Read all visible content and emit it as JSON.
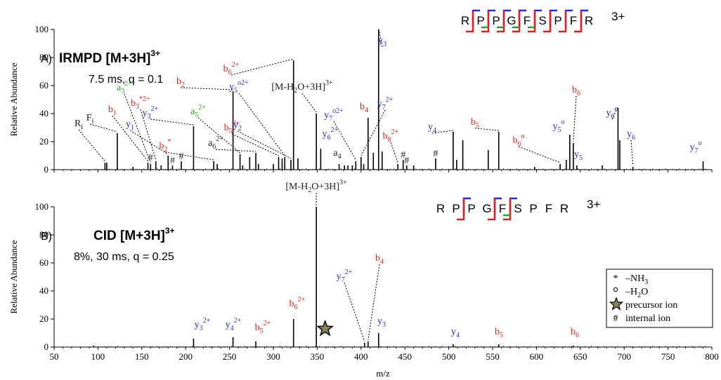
{
  "chart_data": {
    "type": "bar",
    "x_range": [
      50,
      800
    ],
    "x_ticks": [
      50,
      100,
      150,
      200,
      250,
      300,
      350,
      400,
      450,
      500,
      550,
      600,
      650,
      700,
      750,
      800
    ],
    "xlabel": "m/z",
    "colors": {
      "b": "#e02020",
      "y": "#2c2cc8",
      "a": "#2aa02a",
      "other": "#222222"
    },
    "panels": [
      {
        "id": "A",
        "panel_label": "A)",
        "title_main": "IRMPD [M+3H]",
        "title_sup": "3+",
        "subtitle": "7.5 ms, q = 0.1",
        "ylabel": "Relative Abundance",
        "ylim": [
          0,
          100
        ],
        "y_ticks": [
          0,
          20,
          40,
          60,
          80,
          100
        ],
        "sequence": [
          "R",
          "P",
          "P",
          "G",
          "F",
          "S",
          "P",
          "F",
          "R"
        ],
        "sequence_charge": "3+",
        "b_cleavages": [
          1,
          2,
          3,
          4,
          5,
          6,
          7,
          8
        ],
        "y_cleavages": [
          1,
          2,
          3,
          4,
          5,
          6,
          7,
          8
        ],
        "green_cleavages": [
          2,
          3,
          4,
          5
        ],
        "peaks": [
          [
            108,
            5
          ],
          [
            110,
            5
          ],
          [
            122,
            26
          ],
          [
            140,
            2
          ],
          [
            157,
            5
          ],
          [
            160,
            4
          ],
          [
            166,
            6
          ],
          [
            172,
            3
          ],
          [
            180,
            10
          ],
          [
            185,
            3
          ],
          [
            195,
            6
          ],
          [
            209,
            31
          ],
          [
            232,
            6
          ],
          [
            236,
            4
          ],
          [
            254,
            56
          ],
          [
            262,
            11
          ],
          [
            265,
            3
          ],
          [
            273,
            9
          ],
          [
            280,
            12
          ],
          [
            283,
            4
          ],
          [
            300,
            4
          ],
          [
            306,
            9
          ],
          [
            310,
            8
          ],
          [
            313,
            9
          ],
          [
            320,
            7
          ],
          [
            323,
            78
          ],
          [
            328,
            8
          ],
          [
            349,
            40
          ],
          [
            354,
            15
          ],
          [
            375,
            4
          ],
          [
            381,
            3
          ],
          [
            385,
            3
          ],
          [
            390,
            3
          ],
          [
            394,
            6
          ],
          [
            400,
            9
          ],
          [
            403,
            4
          ],
          [
            408,
            37
          ],
          [
            414,
            12
          ],
          [
            420,
            100
          ],
          [
            424,
            13
          ],
          [
            442,
            4
          ],
          [
            448,
            7
          ],
          [
            452,
            3
          ],
          [
            460,
            3
          ],
          [
            485,
            8
          ],
          [
            505,
            27
          ],
          [
            509,
            7
          ],
          [
            516,
            21
          ],
          [
            545,
            14
          ],
          [
            557,
            27
          ],
          [
            598,
            2
          ],
          [
            627,
            4
          ],
          [
            634,
            7
          ],
          [
            638,
            25
          ],
          [
            642,
            19
          ],
          [
            646,
            3
          ],
          [
            675,
            3
          ],
          [
            693,
            44
          ],
          [
            695,
            21
          ],
          [
            710,
            2
          ],
          [
            790,
            6
          ]
        ],
        "annotations": [
          {
            "label": "R",
            "sub": "i",
            "sup": "",
            "ion": "other",
            "mz": 108,
            "tx": 112,
            "ty": 180
          },
          {
            "label": "F",
            "sub": "i",
            "sup": "",
            "ion": "other",
            "mz": 122,
            "tx": 128,
            "ty": 172
          },
          {
            "label": "b",
            "sub": "1",
            "sup": "",
            "ion": "b",
            "mz": 157,
            "tx": 160,
            "ty": 160
          },
          {
            "label": "a",
            "sub": "3",
            "sup": "2+",
            "ion": "a",
            "mz": 160,
            "tx": 177,
            "ty": 129
          },
          {
            "label": "b",
            "sub": "3",
            "sup": "*2+",
            "ion": "b",
            "mz": 166,
            "tx": 200,
            "ty": 151
          },
          {
            "label": "y",
            "sub": "1",
            "sup": "",
            "ion": "y",
            "mz": 180,
            "tx": 185,
            "ty": 181
          },
          {
            "label": "y",
            "sub": "3",
            "sup": "2+",
            "ion": "y",
            "mz": 209,
            "tx": 214,
            "ty": 165
          },
          {
            "label": "b",
            "sub": "2",
            "sup": "*",
            "ion": "b",
            "mz": 232,
            "tx": 235,
            "ty": 212
          },
          {
            "label": "b",
            "sub": "2",
            "sup": "",
            "ion": "b",
            "mz": 254,
            "tx": 257,
            "ty": 120
          },
          {
            "label": "a",
            "sub": "5",
            "sup": "2+",
            "ion": "a",
            "mz": 262,
            "tx": 282,
            "ty": 163
          },
          {
            "label": "a",
            "sub": "6",
            "sup": "2+",
            "ion": "other",
            "mz": 280,
            "tx": 307,
            "ty": 208
          },
          {
            "label": "b",
            "sub": "5",
            "sup": "2+",
            "ion": "b",
            "mz": 306,
            "tx": 330,
            "ty": 186
          },
          {
            "label": "y",
            "sub": "5",
            "sup": "o2+",
            "ion": "y",
            "mz": 313,
            "tx": 340,
            "ty": 128
          },
          {
            "label": "b",
            "sub": "6",
            "sup": "2+",
            "ion": "b",
            "mz": 323,
            "tx": 329,
            "ty": 102
          },
          {
            "label": "y",
            "sub": "2",
            "sup": "",
            "ion": "y",
            "mz": 320,
            "tx": 338,
            "ty": 182
          },
          {
            "label": "[M-H",
            "sub": "2",
            "sup": "",
            "tail": "O+3H]",
            "tailsup": "3+",
            "ion": "other",
            "mz": 349,
            "tx": 430,
            "ty": 128
          },
          {
            "label": "y",
            "sub": "6",
            "sup": "2+",
            "ion": "y",
            "mz": 354,
            "tx": 470,
            "ty": 195
          },
          {
            "label": "a",
            "sub": "4",
            "sup": "",
            "ion": "other",
            "mz": 375,
            "tx": 480,
            "ty": 222
          },
          {
            "label": "y",
            "sub": "7",
            "sup": "o2+",
            "ion": "y",
            "mz": 394,
            "tx": 475,
            "ty": 168
          },
          {
            "label": "b",
            "sub": "4",
            "sup": "",
            "ion": "b",
            "mz": 408,
            "tx": 518,
            "ty": 156
          },
          {
            "label": "y",
            "sub": "3",
            "sup": "",
            "ion": "y",
            "mz": 420,
            "tx": 544,
            "ty": 62
          },
          {
            "label": "y",
            "sub": "7",
            "sup": "2+",
            "ion": "y",
            "mz": 400,
            "tx": 548,
            "ty": 152
          },
          {
            "label": "b",
            "sub": "8",
            "sup": "2+",
            "ion": "b",
            "mz": 442,
            "tx": 556,
            "ty": 198
          },
          {
            "label": "y",
            "sub": "4",
            "sup": "",
            "ion": "y",
            "mz": 505,
            "tx": 615,
            "ty": 185
          },
          {
            "label": "b",
            "sub": "5",
            "sup": "",
            "ion": "b",
            "mz": 557,
            "tx": 676,
            "ty": 178
          },
          {
            "label": "b",
            "sub": "6",
            "sup": "o",
            "ion": "b",
            "mz": 627,
            "tx": 738,
            "ty": 204
          },
          {
            "label": "b",
            "sub": "6",
            "sup": "",
            "ion": "b",
            "mz": 642,
            "tx": 820,
            "ty": 132
          },
          {
            "label": "y",
            "sub": "5",
            "sup": "o",
            "ion": "y",
            "mz": 638,
            "tx": 795,
            "ty": 184
          },
          {
            "label": "y",
            "sub": "5",
            "sup": "",
            "ion": "y",
            "mz": 646,
            "tx": 823,
            "ty": 224
          },
          {
            "label": "y",
            "sub": "6",
            "sup": "o",
            "ion": "y",
            "mz": 693,
            "tx": 871,
            "ty": 165
          },
          {
            "label": "y",
            "sub": "6",
            "sup": "",
            "ion": "y",
            "mz": 710,
            "tx": 898,
            "ty": 195
          },
          {
            "label": "y",
            "sub": "7",
            "sup": "o",
            "ion": "y",
            "mz": 790,
            "tx": 990,
            "ty": 214
          }
        ],
        "hashes": [
          [
            160,
            5
          ],
          [
            185,
            3
          ],
          [
            195,
            6
          ],
          [
            448,
            7
          ],
          [
            452,
            3
          ],
          [
            485,
            8
          ]
        ]
      },
      {
        "id": "B",
        "panel_label": "B)",
        "title_main": "CID [M+3H]",
        "title_sup": "3+",
        "subtitle": "8%, 30 ms, q = 0.25",
        "ylabel": "Relative Abundance",
        "ylim": [
          0,
          100
        ],
        "y_ticks": [
          0,
          20,
          40,
          60,
          80,
          100
        ],
        "sequence": [
          "R",
          "P",
          "P",
          "G",
          "F",
          "S",
          "P",
          "F",
          "R"
        ],
        "sequence_charge": "3+",
        "b_cleavages": [
          2,
          4,
          5
        ],
        "y_cleavages": [
          2,
          4,
          5
        ],
        "green_cleavages": [
          5
        ],
        "peaks": [
          [
            95,
            1
          ],
          [
            209,
            6
          ],
          [
            254,
            7
          ],
          [
            280,
            4
          ],
          [
            323,
            20
          ],
          [
            349,
            100
          ],
          [
            404,
            3
          ],
          [
            408,
            4
          ],
          [
            420,
            10
          ],
          [
            505,
            2
          ],
          [
            557,
            2
          ],
          [
            642,
            1
          ]
        ],
        "annotations": [
          {
            "label": "[M-H",
            "sub": "2",
            "sup": "",
            "tail": "O+3H]",
            "tailsup": "3+",
            "ion": "other",
            "mz": 349,
            "tx": 450,
            "ty": 270
          },
          {
            "label": "y",
            "sub": "3",
            "sup": "2+",
            "ion": "y",
            "mz": 209,
            "tx": 288,
            "ty": 467
          },
          {
            "label": "y",
            "sub": "4",
            "sup": "2+",
            "ion": "y",
            "mz": 254,
            "tx": 332,
            "ty": 467
          },
          {
            "label": "b",
            "sub": "5",
            "sup": "2+",
            "ion": "b",
            "mz": 280,
            "tx": 374,
            "ty": 471
          },
          {
            "label": "b",
            "sub": "6",
            "sup": "2+",
            "ion": "b",
            "mz": 323,
            "tx": 423,
            "ty": 437
          },
          {
            "label": "y",
            "sub": "7",
            "sup": "2+",
            "ion": "y",
            "mz": 404,
            "tx": 490,
            "ty": 398
          },
          {
            "label": "b",
            "sub": "4",
            "sup": "",
            "ion": "b",
            "mz": 408,
            "tx": 540,
            "ty": 372
          },
          {
            "label": "y",
            "sub": "3",
            "sup": "",
            "ion": "y",
            "mz": 420,
            "tx": 543,
            "ty": 462
          },
          {
            "label": "y",
            "sub": "4",
            "sup": "",
            "ion": "y",
            "mz": 505,
            "tx": 648,
            "ty": 477
          },
          {
            "label": "b",
            "sub": "5",
            "sup": "",
            "ion": "b",
            "mz": 557,
            "tx": 710,
            "ty": 477
          },
          {
            "label": "b",
            "sub": "6",
            "sup": "",
            "ion": "b",
            "mz": 642,
            "tx": 818,
            "ty": 477
          }
        ],
        "precursor_marker": {
          "mz": 359,
          "y": 13
        }
      }
    ],
    "legend": [
      {
        "symbol": "*",
        "label": "–NH",
        "sub": "3"
      },
      {
        "symbol": "o",
        "label": "–H",
        "sub": "2",
        "tail": "O"
      },
      {
        "symbol": "star",
        "label": "precursor ion"
      },
      {
        "symbol": "#",
        "label": "internal ion"
      }
    ]
  }
}
